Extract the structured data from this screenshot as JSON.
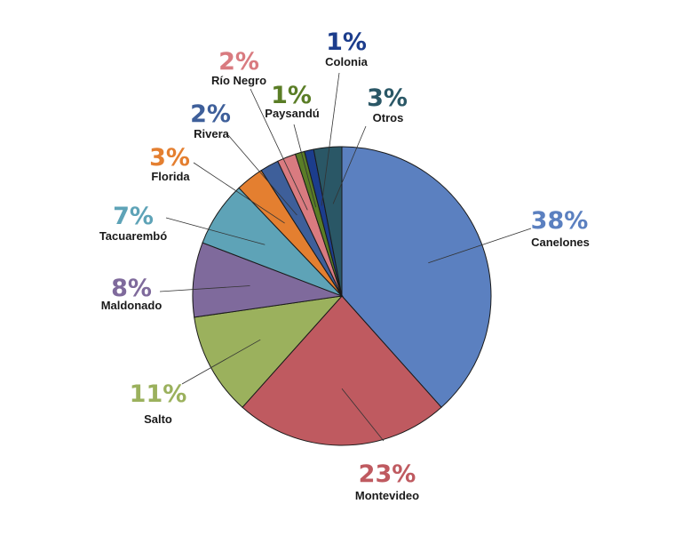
{
  "chart_data": {
    "type": "pie",
    "slices": [
      {
        "label": "Canelones",
        "value": 38,
        "value_label": "38%",
        "color": "#5b80c0"
      },
      {
        "label": "Montevideo",
        "value": 23,
        "value_label": "23%",
        "color": "#bf5a60"
      },
      {
        "label": "Salto",
        "value": 11,
        "value_label": "11%",
        "color": "#9bb15d"
      },
      {
        "label": "Maldonado",
        "value": 8,
        "value_label": "8%",
        "color": "#7f6a9c"
      },
      {
        "label": "Tacuarembó",
        "value": 7,
        "value_label": "7%",
        "color": "#5ea3b7"
      },
      {
        "label": "Florida",
        "value": 3,
        "value_label": "3%",
        "color": "#e47f30"
      },
      {
        "label": "Rivera",
        "value": 2,
        "value_label": "2%",
        "color": "#3e5f9a"
      },
      {
        "label": "Río Negro",
        "value": 2,
        "value_label": "2%",
        "color": "#d97b80"
      },
      {
        "label": "Paysandú",
        "value": 1,
        "value_label": "1%",
        "color": "#5a7d26"
      },
      {
        "label": "Colonia",
        "value": 1,
        "value_label": "1%",
        "color": "#1c3d8c"
      },
      {
        "label": "Otros",
        "value": 3,
        "value_label": "3%",
        "color": "#2a5766"
      }
    ]
  }
}
